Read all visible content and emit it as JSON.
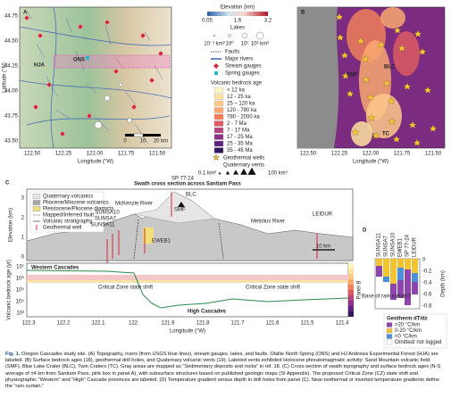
{
  "panel_a": {
    "label": "A",
    "ylabel": "Latitude (°N)",
    "xlabel": "Longitude (°W)",
    "yticks": [
      "44.75",
      "44.50",
      "44.25",
      "44.00",
      "43.75",
      "43.50"
    ],
    "xticks": [
      "122.50",
      "122.25",
      "122.00",
      "121.75",
      "121.50"
    ],
    "annotations": [
      "HJA",
      "ONS"
    ],
    "scale": [
      "0",
      "10",
      "20 km"
    ]
  },
  "legend": {
    "elevation_title": "Elevation (km)",
    "elevation_ticks": [
      "0.05",
      "1.6",
      "3.2"
    ],
    "lakes_title": "Lakes",
    "lakes_ticks": [
      "10⁻¹ km²",
      "10⁰",
      "10¹",
      "10² km²"
    ],
    "line_items": [
      "Faults",
      "Major rivers",
      "Stream gauges",
      "Spring gauges"
    ],
    "age_title": "Volcanic bedrock age",
    "age_items": [
      {
        "label": "< 12 ka",
        "color": "#fff5c0"
      },
      {
        "label": "12 - 25 ka",
        "color": "#fde3a0"
      },
      {
        "label": "25 – 120 ka",
        "color": "#fcc98a"
      },
      {
        "label": "120 - 780 ka",
        "color": "#f9a870"
      },
      {
        "label": "780 - 2000 ka",
        "color": "#f07f5a"
      },
      {
        "label": "2 - 7 Ma",
        "color": "#dc5a61"
      },
      {
        "label": "7 - 17 Ma",
        "color": "#b8437a"
      },
      {
        "label": "17 - 25 Ma",
        "color": "#8c2f86"
      },
      {
        "label": "25 - 35 Ma",
        "color": "#5e2381"
      },
      {
        "label": "35 - 45 Ma",
        "color": "#331860"
      }
    ],
    "geothermal": "Geothermal wells",
    "vents_title": "Quaternary vents",
    "vents_ticks": [
      "0.1 km³",
      "100 km³"
    ]
  },
  "panel_b": {
    "label": "B",
    "xlabel": "Longitude (°W)",
    "xticks": [
      "122.50",
      "122.25",
      "122.00",
      "121.75",
      "121.50"
    ],
    "annotations": [
      "SMF",
      "BLC",
      "TC"
    ]
  },
  "panel_c": {
    "label": "C",
    "title": "Swath cross section across Santiam Pass",
    "ylabel": "Elevation (km)",
    "yticks": [
      "3",
      "2",
      "1",
      "0"
    ],
    "legend": [
      "Quaternary volcanics",
      "Pliocene/Miocene volcanics",
      "Pleistocene/Pliocene diamicts",
      "Mapped/Inferred fault",
      "Volcanic stratigraphy",
      "Geothermal well"
    ],
    "wells": [
      "SUNSA11",
      "SUNSA7",
      "SUNSA10",
      "EWEB1",
      "SMF",
      "SP 77-24",
      "BLC",
      "LEIDUR"
    ],
    "rivers": [
      "McKenzie River",
      "Metolius River"
    ],
    "scale": "10 km",
    "lower_ylabel": "Volcanic bedrock age (yr)",
    "lower_yticks": [
      "10⁷",
      "10⁶",
      "10⁵",
      "10⁴",
      "10³"
    ],
    "provinces": [
      "Western Cascades",
      "High Cascades"
    ],
    "shift": [
      "Critical Zone state shift",
      "Critical Zone state shift"
    ],
    "strip": "Panel B",
    "xticks": [
      "122.3",
      "122.2",
      "122.1",
      "122",
      "121.9",
      "121.8",
      "121.7",
      "121.6",
      "121.5",
      "121.4"
    ],
    "xlabel": "Longitude (°W)"
  },
  "panel_d": {
    "label": "D",
    "columns": [
      "SUNSA11",
      "SUNSA7",
      "SUNSA10",
      "EWEB1",
      "SP 77-24",
      "LEIDUR"
    ],
    "yticks": [
      "0",
      "-0.2",
      "-0.4",
      "-0.6",
      "-0.8"
    ],
    "ylabel": "Depth (km)",
    "annotation": "Base of rain curtain?",
    "legend_title": "Geotherm dT/dz",
    "legend_items": [
      ">20 °C/km",
      "0-20 °C/km",
      "<0 °C/km",
      "Omitted/ not logged"
    ]
  },
  "caption": {
    "lead": "Fig. 1.",
    "text": "Oregon Cascades study site. (A) Topography, rivers (from USGS blue lines), stream gauges, lakes, and faults. Olallie North Spring (ONS) and HJ Andrews Experimental Forest (HJA) are labeled. (B) Surface bedrock ages (18), geothermal drill holes, and Quaternary volcanic vents (19). Labeled vents exhibited Holocene phreatomagmatic activity: Sand Mountain volcanic field (SMF), Blue Lake Crater (BLC), Twin Craters (TC). Gray areas are mapped as “Sedimentary deposits and rocks” in ref. 18. (C) Cross-section of swath topography and surface bedrock ages (N-S average of ±4 km from Santiam Pass, pink box in panel A), with subsurface structures based on published geologic maps (SI Appendix). The proposed Critical Zone (CZ) state shift and physiographic “Western” and “High” Cascade provinces are labeled. (D) Temperature gradient versus depth in drill holes from panel (C). Near-isothermal or inverted temperature gradients define the “rain curtain.”"
  }
}
